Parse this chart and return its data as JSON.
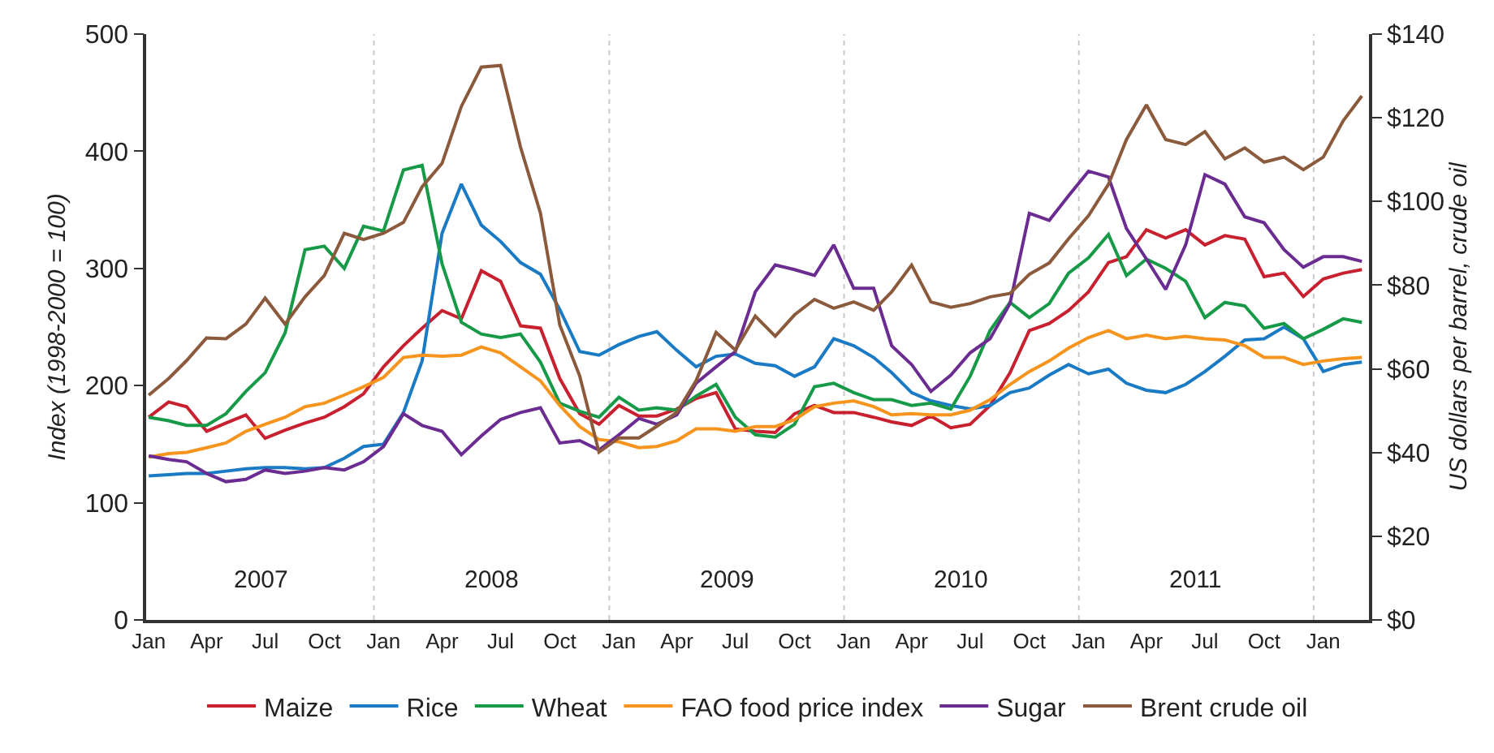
{
  "chart_data": {
    "type": "line",
    "ylabel": "Index (1998-2000 = 100)",
    "y2label": "US dollars per barrel, crude oil",
    "x": [
      "2007-01",
      "2007-02",
      "2007-03",
      "2007-04",
      "2007-05",
      "2007-06",
      "2007-07",
      "2007-08",
      "2007-09",
      "2007-10",
      "2007-11",
      "2007-12",
      "2008-01",
      "2008-02",
      "2008-03",
      "2008-04",
      "2008-05",
      "2008-06",
      "2008-07",
      "2008-08",
      "2008-09",
      "2008-10",
      "2008-11",
      "2008-12",
      "2009-01",
      "2009-02",
      "2009-03",
      "2009-04",
      "2009-05",
      "2009-06",
      "2009-07",
      "2009-08",
      "2009-09",
      "2009-10",
      "2009-11",
      "2009-12",
      "2010-01",
      "2010-02",
      "2010-03",
      "2010-04",
      "2010-05",
      "2010-06",
      "2010-07",
      "2010-08",
      "2010-09",
      "2010-10",
      "2010-11",
      "2010-12",
      "2011-01",
      "2011-02",
      "2011-03",
      "2011-04",
      "2011-05",
      "2011-06",
      "2011-07",
      "2011-08",
      "2011-09",
      "2011-10",
      "2011-11",
      "2011-12",
      "2012-01",
      "2012-02",
      "2012-03"
    ],
    "series": [
      {
        "name": "Maize",
        "color": "#c8202f",
        "values": [
          173,
          186,
          182,
          161,
          168,
          175,
          155,
          162,
          168,
          173,
          182,
          193,
          216,
          234,
          249,
          264,
          257,
          298,
          289,
          251,
          249,
          206,
          176,
          167,
          183,
          174,
          174,
          180,
          189,
          194,
          163,
          161,
          160,
          176,
          183,
          177,
          177,
          173,
          169,
          166,
          174,
          164,
          167,
          183,
          211,
          247,
          253,
          264,
          280,
          305,
          310,
          333,
          326,
          333,
          320,
          328,
          325,
          293,
          296,
          276,
          291,
          296,
          299
        ]
      },
      {
        "name": "Rice",
        "color": "#1a7bc4",
        "values": [
          123,
          124,
          125,
          125,
          127,
          129,
          130,
          130,
          129,
          130,
          138,
          148,
          150,
          177,
          221,
          330,
          372,
          337,
          323,
          305,
          295,
          265,
          229,
          226,
          235,
          242,
          246,
          230,
          216,
          225,
          227,
          219,
          217,
          208,
          216,
          240,
          234,
          224,
          211,
          194,
          187,
          183,
          180,
          183,
          194,
          198,
          209,
          218,
          210,
          214,
          202,
          196,
          194,
          201,
          212,
          225,
          239,
          240,
          250,
          240,
          212,
          218,
          220
        ]
      },
      {
        "name": "Wheat",
        "color": "#179a48",
        "values": [
          173,
          170,
          166,
          166,
          176,
          195,
          211,
          245,
          316,
          319,
          300,
          336,
          332,
          384,
          388,
          304,
          254,
          244,
          241,
          244,
          220,
          185,
          178,
          173,
          190,
          179,
          181,
          179,
          191,
          201,
          173,
          158,
          156,
          167,
          199,
          202,
          194,
          188,
          188,
          183,
          185,
          180,
          208,
          247,
          271,
          258,
          270,
          296,
          309,
          329,
          294,
          308,
          300,
          289,
          258,
          271,
          268,
          249,
          253,
          240,
          248,
          257,
          254
        ]
      },
      {
        "name": "FAO food price index",
        "color": "#f7941d",
        "values": [
          139,
          142,
          143,
          147,
          151,
          161,
          167,
          173,
          182,
          185,
          192,
          199,
          207,
          224,
          226,
          225,
          226,
          233,
          228,
          216,
          204,
          183,
          165,
          154,
          152,
          147,
          148,
          153,
          163,
          163,
          161,
          165,
          165,
          171,
          182,
          185,
          187,
          182,
          175,
          176,
          175,
          175,
          179,
          188,
          201,
          212,
          221,
          232,
          241,
          247,
          240,
          243,
          240,
          242,
          240,
          239,
          234,
          224,
          224,
          218,
          221,
          223,
          224
        ]
      },
      {
        "name": "Sugar",
        "color": "#6b2c91",
        "values": [
          140,
          137,
          135,
          125,
          118,
          120,
          128,
          125,
          127,
          130,
          128,
          135,
          148,
          176,
          166,
          161,
          141,
          157,
          171,
          177,
          181,
          151,
          153,
          145,
          158,
          172,
          167,
          175,
          202,
          216,
          229,
          280,
          303,
          299,
          294,
          320,
          283,
          283,
          234,
          218,
          195,
          209,
          228,
          240,
          270,
          347,
          341,
          362,
          383,
          378,
          334,
          308,
          282,
          320,
          380,
          372,
          344,
          339,
          316,
          301,
          310,
          310,
          306
        ]
      },
      {
        "name": "Brent crude oil",
        "color": "#8b5a3c",
        "axis": "y2",
        "values": [
          53.7,
          57.7,
          62.0,
          67.4,
          67.2,
          70.7,
          76.9,
          70.7,
          77.2,
          82.3,
          92.4,
          90.9,
          92.4,
          95.0,
          103.5,
          109.1,
          122.7,
          132.1,
          132.5,
          113.0,
          97.2,
          70.5,
          58.3,
          40.1,
          43.5,
          43.5,
          46.3,
          49.6,
          57.2,
          68.7,
          64.5,
          72.6,
          67.8,
          72.9,
          76.6,
          74.5,
          76.0,
          74.0,
          78.4,
          84.8,
          76.0,
          74.7,
          75.6,
          77.2,
          78.0,
          82.6,
          85.3,
          91.1,
          96.6,
          104.1,
          114.8,
          123.1,
          114.8,
          113.6,
          116.7,
          110.2,
          112.8,
          109.4,
          110.6,
          107.6,
          110.6,
          119.3,
          125.2
        ]
      }
    ],
    "xlim": [
      "2006-12-28",
      "2012-03-12"
    ],
    "xticks": [
      {
        "value": "2007-01",
        "label": "Jan"
      },
      {
        "value": "2007-04",
        "label": "Apr"
      },
      {
        "value": "2007-07",
        "label": "Jul"
      },
      {
        "value": "2007-10",
        "label": "Oct"
      },
      {
        "value": "2008-01",
        "label": "Jan"
      },
      {
        "value": "2008-04",
        "label": "Apr"
      },
      {
        "value": "2008-07",
        "label": "Jul"
      },
      {
        "value": "2008-10",
        "label": "Oct"
      },
      {
        "value": "2009-01",
        "label": "Jan"
      },
      {
        "value": "2009-04",
        "label": "Apr"
      },
      {
        "value": "2009-07",
        "label": "Jul"
      },
      {
        "value": "2009-10",
        "label": "Oct"
      },
      {
        "value": "2010-01",
        "label": "Jan"
      },
      {
        "value": "2010-04",
        "label": "Apr"
      },
      {
        "value": "2010-07",
        "label": "Jul"
      },
      {
        "value": "2010-10",
        "label": "Oct"
      },
      {
        "value": "2011-01",
        "label": "Jan"
      },
      {
        "value": "2011-04",
        "label": "Apr"
      },
      {
        "value": "2011-07",
        "label": "Jul"
      },
      {
        "value": "2011-10",
        "label": "Oct"
      },
      {
        "value": "2012-01",
        "label": "Jan"
      }
    ],
    "ylim": [
      0,
      500
    ],
    "yticks": [
      0,
      100,
      200,
      300,
      400,
      500
    ],
    "y2lim": [
      0,
      140
    ],
    "y2ticks": [
      {
        "value": 0,
        "label": "$0"
      },
      {
        "value": 20,
        "label": "$20"
      },
      {
        "value": 40,
        "label": "$40"
      },
      {
        "value": 60,
        "label": "$60"
      },
      {
        "value": 80,
        "label": "$80"
      },
      {
        "value": 100,
        "label": "$100"
      },
      {
        "value": 120,
        "label": "$120"
      },
      {
        "value": 140,
        "label": "$140"
      }
    ],
    "ref_lines": [
      {
        "axis": "x",
        "value": "2007-12-17",
        "color": "#c8c8c8",
        "line_style": "dotted"
      },
      {
        "axis": "x",
        "value": "2008-12-17",
        "color": "#c8c8c8",
        "line_style": "dotted"
      },
      {
        "axis": "x",
        "value": "2009-12-17",
        "color": "#c8c8c8",
        "line_style": "dotted"
      },
      {
        "axis": "x",
        "value": "2010-12-17",
        "color": "#c8c8c8",
        "line_style": "dotted"
      },
      {
        "axis": "x",
        "value": "2011-12-17",
        "color": "#c8c8c8",
        "line_style": "dotted"
      }
    ],
    "annotations": [
      "2007",
      "2008",
      "2009",
      "2010",
      "2011"
    ],
    "line_style": "solid",
    "legend": "bottom"
  }
}
